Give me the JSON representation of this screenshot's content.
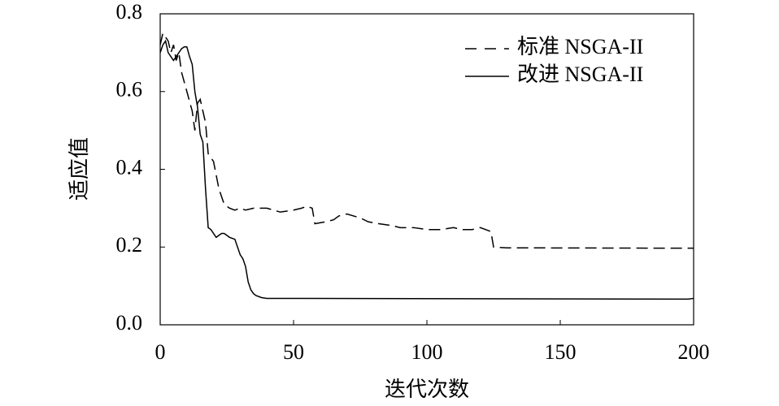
{
  "chart_data": {
    "type": "line",
    "x_label": "迭代次数",
    "y_label": "适应值",
    "xlim": [
      0,
      200
    ],
    "ylim": [
      0,
      0.8
    ],
    "xticks": [
      0,
      50,
      100,
      150,
      200
    ],
    "yticks": [
      {
        "value": 0,
        "label": "0.0"
      },
      0.2,
      0.4,
      0.6,
      0.8
    ],
    "legend": "upper right",
    "series": [
      {
        "name": "标准 NSGA-II",
        "color": "#000000",
        "line_style": "dashed",
        "x": [
          0,
          1,
          2,
          3,
          4,
          5,
          6,
          7,
          8,
          10,
          12,
          13,
          14,
          15,
          16,
          17,
          18,
          20,
          22,
          24,
          26,
          28,
          30,
          32,
          35,
          38,
          40,
          45,
          50,
          53,
          55,
          57,
          58,
          62,
          65,
          67,
          70,
          75,
          78,
          82,
          87,
          90,
          95,
          100,
          105,
          110,
          113,
          117,
          120,
          124,
          125,
          130,
          200
        ],
        "values": [
          0.72,
          0.75,
          0.74,
          0.73,
          0.7,
          0.72,
          0.68,
          0.7,
          0.65,
          0.6,
          0.55,
          0.5,
          0.57,
          0.58,
          0.55,
          0.52,
          0.44,
          0.42,
          0.35,
          0.31,
          0.3,
          0.295,
          0.3,
          0.295,
          0.3,
          0.3,
          0.3,
          0.29,
          0.295,
          0.3,
          0.305,
          0.3,
          0.26,
          0.265,
          0.27,
          0.28,
          0.285,
          0.275,
          0.265,
          0.26,
          0.255,
          0.25,
          0.25,
          0.245,
          0.245,
          0.25,
          0.245,
          0.245,
          0.25,
          0.24,
          0.2,
          0.198,
          0.197
        ]
      },
      {
        "name": "改进 NSGA-II",
        "color": "#000000",
        "line_style": "solid",
        "x": [
          0,
          1,
          2,
          3,
          4,
          5,
          6,
          7,
          8,
          9,
          10,
          11,
          12,
          13,
          14,
          15,
          16,
          17,
          18,
          19,
          20,
          21,
          22,
          23,
          24,
          25,
          26,
          28,
          29,
          30,
          31,
          32,
          33,
          34,
          35,
          36,
          38,
          40,
          45,
          198,
          200
        ],
        "values": [
          0.7,
          0.72,
          0.73,
          0.7,
          0.69,
          0.68,
          0.69,
          0.7,
          0.71,
          0.715,
          0.715,
          0.69,
          0.67,
          0.6,
          0.56,
          0.49,
          0.47,
          0.35,
          0.25,
          0.245,
          0.235,
          0.225,
          0.23,
          0.235,
          0.235,
          0.23,
          0.225,
          0.22,
          0.2,
          0.18,
          0.17,
          0.15,
          0.11,
          0.09,
          0.08,
          0.075,
          0.07,
          0.068,
          0.068,
          0.066,
          0.068
        ]
      }
    ]
  }
}
